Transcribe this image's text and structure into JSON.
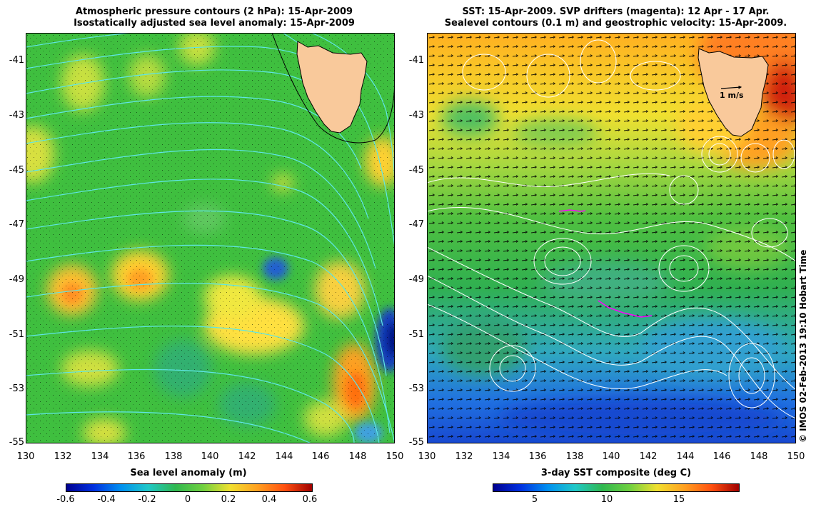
{
  "left_panel": {
    "title_line1": "Atmospheric pressure contours (2 hPa): 15-Apr-2009",
    "title_line2": "Isostatically adjusted sea level anomaly: 15-Apr-2009",
    "colorbar_label": "Sea level anomaly (m)",
    "colorbar_ticks": [
      "-0.6",
      "-0.4",
      "-0.2",
      "0",
      "0.2",
      "0.4",
      "0.6"
    ]
  },
  "right_panel": {
    "title_line1": "SST: 15-Apr-2009. SVP drifters (magenta): 12 Apr - 17 Apr.",
    "title_line2": "Sealevel contours (0.1 m) and geostrophic velocity: 15-Apr-2009.",
    "colorbar_label": "3-day SST composite (deg C)",
    "colorbar_ticks": [
      "5",
      "10",
      "15"
    ],
    "scale_arrow_label": "1 m/s"
  },
  "axes": {
    "lat_ticks": [
      "-41",
      "-43",
      "-45",
      "-47",
      "-49",
      "-51",
      "-53",
      "-55"
    ],
    "lon_ticks": [
      "130",
      "132",
      "134",
      "136",
      "138",
      "140",
      "142",
      "144",
      "146",
      "148",
      "150"
    ]
  },
  "credit": "© IMOS 02-Feb-2013 19:10 Hobart Time",
  "colors": {
    "land": "#f9c99b",
    "ssh_contour": "#5fe6e6",
    "sst_contour": "#ffffff",
    "drifter": "#ff00ff"
  }
}
